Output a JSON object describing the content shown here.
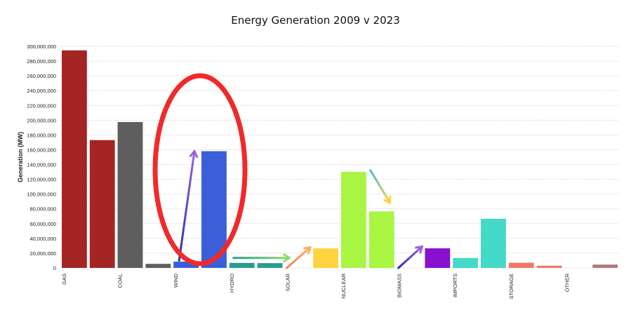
{
  "chart_data": {
    "type": "bar",
    "title": "Energy Generation 2009 v 2023",
    "xlabel": "",
    "ylabel": "Generation (MW)",
    "ylim": [
      0,
      300000000
    ],
    "yticks": [
      0,
      20000000,
      40000000,
      60000000,
      80000000,
      100000000,
      120000000,
      140000000,
      160000000,
      180000000,
      200000000,
      220000000,
      240000000,
      260000000,
      280000000,
      300000000
    ],
    "ytick_labels": [
      "0",
      "20,000,000",
      "40,000,000",
      "60,000,000",
      "80,000,000",
      "100,000,000",
      "120,000,000",
      "140,000,000",
      "160,000,000",
      "180,000,000",
      "200,000,000",
      "220,000,000",
      "240,000,000",
      "260,000,000",
      "280,000,000",
      "300,000,000"
    ],
    "grid": true,
    "legend": "none",
    "bars_per_category": [
      "2009",
      "2023"
    ],
    "categories": [
      "GAS",
      "COAL",
      "WIND",
      "HYDRO",
      "SOLAR",
      "NUCLEAR",
      "BIOMASS",
      "IMPORTS",
      "STORAGE",
      "OTHER"
    ],
    "bars": [
      {
        "category": "GAS",
        "year": "2009",
        "value": 294500000,
        "color": "#a52424"
      },
      {
        "category": "GAS",
        "year": "2023",
        "value": 173000000,
        "color": "#a52424"
      },
      {
        "category": "COAL",
        "year": "2009",
        "value": 197500000,
        "color": "#5e5e5e"
      },
      {
        "category": "COAL",
        "year": "2023",
        "value": 5500000,
        "color": "#5e5e5e"
      },
      {
        "category": "WIND",
        "year": "2009",
        "value": 8500000,
        "color": "#3a5fd9"
      },
      {
        "category": "WIND",
        "year": "2023",
        "value": 158000000,
        "color": "#3a5fd9"
      },
      {
        "category": "HYDRO",
        "year": "2009",
        "value": 6800000,
        "color": "#2a9d8f"
      },
      {
        "category": "HYDRO",
        "year": "2023",
        "value": 6500000,
        "color": "#2a9d8f"
      },
      {
        "category": "SOLAR",
        "year": "2009",
        "value": 0,
        "color": "#ffd23f"
      },
      {
        "category": "SOLAR",
        "year": "2023",
        "value": 26500000,
        "color": "#ffd23f"
      },
      {
        "category": "NUCLEAR",
        "year": "2009",
        "value": 130000000,
        "color": "#a8f542"
      },
      {
        "category": "NUCLEAR",
        "year": "2023",
        "value": 76500000,
        "color": "#a8f542"
      },
      {
        "category": "BIOMASS",
        "year": "2009",
        "value": 0,
        "color": "#8a10d0"
      },
      {
        "category": "BIOMASS",
        "year": "2023",
        "value": 26500000,
        "color": "#8a10d0"
      },
      {
        "category": "IMPORTS",
        "year": "2009",
        "value": 13500000,
        "color": "#45d9c8"
      },
      {
        "category": "IMPORTS",
        "year": "2023",
        "value": 66500000,
        "color": "#45d9c8"
      },
      {
        "category": "STORAGE",
        "year": "2009",
        "value": 7000000,
        "color": "#f07868"
      },
      {
        "category": "STORAGE",
        "year": "2023",
        "value": 3000000,
        "color": "#f07868"
      },
      {
        "category": "OTHER",
        "year": "2009",
        "value": 0,
        "color": "#b07a7a"
      },
      {
        "category": "OTHER",
        "year": "2023",
        "value": 4500000,
        "color": "#b07a7a"
      }
    ],
    "annotations": [
      {
        "type": "arrow",
        "category": "WIND",
        "from_value": 10000000,
        "to_value": 158000000,
        "color_start": "#2233aa",
        "color_end": "#a060e0"
      },
      {
        "type": "arrow",
        "category": "HYDRO",
        "from_value": 13500000,
        "to_value": 13500000,
        "color_start": "#2a9d8f",
        "color_end": "#8fdc70"
      },
      {
        "type": "arrow",
        "category": "SOLAR",
        "from_value": 0,
        "to_value": 28000000,
        "color_start": "#ff7f50",
        "color_end": "#ffb060"
      },
      {
        "type": "arrow",
        "category": "NUCLEAR",
        "from_value": 132000000,
        "to_value": 88000000,
        "color_start": "#40c0d0",
        "color_end": "#ffd23f"
      },
      {
        "type": "arrow",
        "category": "BIOMASS",
        "from_value": 0,
        "to_value": 29000000,
        "color_start": "#2233aa",
        "color_end": "#a060e0"
      },
      {
        "type": "ellipse",
        "category": "WIND",
        "color": "#f02a2a"
      }
    ]
  }
}
